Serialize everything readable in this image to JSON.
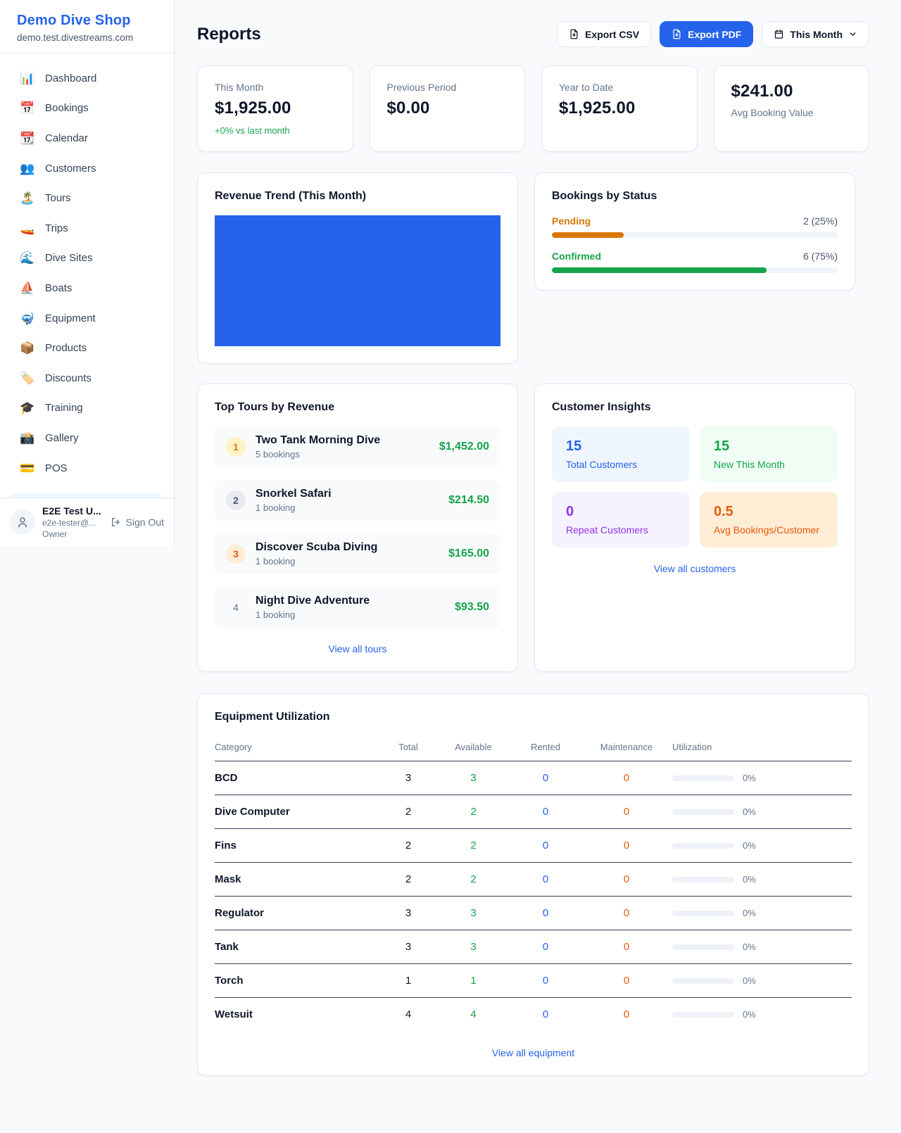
{
  "colors": {
    "accent": "#2563eb",
    "green": "#16a34a",
    "orange": "#d97706",
    "deep-orange": "#ea580c",
    "purple": "#9333ea",
    "bg": "#f8fafc",
    "border": "#e2e8f0",
    "row-border": "#334155",
    "chart-fill": "#2563eb"
  },
  "sidebar": {
    "brand": {
      "name": "Demo Dive Shop",
      "domain": "demo.test.divestreams.com"
    },
    "nav": [
      {
        "icon": "📊",
        "label": "Dashboard"
      },
      {
        "icon": "📅",
        "label": "Bookings"
      },
      {
        "icon": "📆",
        "label": "Calendar"
      },
      {
        "icon": "👥",
        "label": "Customers"
      },
      {
        "icon": "🏝️",
        "label": "Tours"
      },
      {
        "icon": "🚤",
        "label": "Trips"
      },
      {
        "icon": "🌊",
        "label": "Dive Sites"
      },
      {
        "icon": "⛵",
        "label": "Boats"
      },
      {
        "icon": "🤿",
        "label": "Equipment"
      },
      {
        "icon": "📦",
        "label": "Products"
      },
      {
        "icon": "🏷️",
        "label": "Discounts"
      },
      {
        "icon": "🎓",
        "label": "Training"
      },
      {
        "icon": "📸",
        "label": "Gallery"
      },
      {
        "icon": "💳",
        "label": "POS"
      }
    ],
    "user": {
      "name": "E2E Test U...",
      "email": "e2e-tester@...",
      "role": "Owner",
      "sign_out": "Sign Out"
    }
  },
  "header": {
    "title": "Reports",
    "export_csv": "Export CSV",
    "export_pdf": "Export PDF",
    "period": "This Month"
  },
  "stats": [
    {
      "label": "This Month",
      "value": "$1,925.00",
      "delta": "+0% vs last month"
    },
    {
      "label": "Previous Period",
      "value": "$0.00"
    },
    {
      "label": "Year to Date",
      "value": "$1,925.00"
    },
    {
      "label": "Avg Booking Value",
      "value": "$241.00"
    }
  ],
  "revenue_trend": {
    "title": "Revenue Trend (This Month)"
  },
  "bookings_by_status": {
    "title": "Bookings by Status",
    "rows": [
      {
        "label": "Pending",
        "count_text": "2 (25%)",
        "percent": 25
      },
      {
        "label": "Confirmed",
        "count_text": "6 (75%)",
        "percent": 75
      }
    ]
  },
  "top_tours": {
    "title": "Top Tours by Revenue",
    "items": [
      {
        "rank": "1",
        "name": "Two Tank Morning Dive",
        "bookings": "5 bookings",
        "amount": "$1,452.00"
      },
      {
        "rank": "2",
        "name": "Snorkel Safari",
        "bookings": "1 booking",
        "amount": "$214.50"
      },
      {
        "rank": "3",
        "name": "Discover Scuba Diving",
        "bookings": "1 booking",
        "amount": "$165.00"
      },
      {
        "rank": "4",
        "name": "Night Dive Adventure",
        "bookings": "1 booking",
        "amount": "$93.50"
      }
    ],
    "view_all": "View all tours"
  },
  "customer_insights": {
    "title": "Customer Insights",
    "boxes": [
      {
        "value": "15",
        "label": "Total Customers"
      },
      {
        "value": "15",
        "label": "New This Month"
      },
      {
        "value": "0",
        "label": "Repeat Customers"
      },
      {
        "value": "0.5",
        "label": "Avg Bookings/Customer"
      }
    ],
    "view_all": "View all customers"
  },
  "equipment": {
    "title": "Equipment Utilization",
    "columns": [
      "Category",
      "Total",
      "Available",
      "Rented",
      "Maintenance",
      "Utilization"
    ],
    "rows": [
      {
        "category": "BCD",
        "total": "3",
        "available": "3",
        "rented": "0",
        "maintenance": "0",
        "utilization_pct": "0%",
        "utilization": 0
      },
      {
        "category": "Dive Computer",
        "total": "2",
        "available": "2",
        "rented": "0",
        "maintenance": "0",
        "utilization_pct": "0%",
        "utilization": 0
      },
      {
        "category": "Fins",
        "total": "2",
        "available": "2",
        "rented": "0",
        "maintenance": "0",
        "utilization_pct": "0%",
        "utilization": 0
      },
      {
        "category": "Mask",
        "total": "2",
        "available": "2",
        "rented": "0",
        "maintenance": "0",
        "utilization_pct": "0%",
        "utilization": 0
      },
      {
        "category": "Regulator",
        "total": "3",
        "available": "3",
        "rented": "0",
        "maintenance": "0",
        "utilization_pct": "0%",
        "utilization": 0
      },
      {
        "category": "Tank",
        "total": "3",
        "available": "3",
        "rented": "0",
        "maintenance": "0",
        "utilization_pct": "0%",
        "utilization": 0
      },
      {
        "category": "Torch",
        "total": "1",
        "available": "1",
        "rented": "0",
        "maintenance": "0",
        "utilization_pct": "0%",
        "utilization": 0
      },
      {
        "category": "Wetsuit",
        "total": "4",
        "available": "4",
        "rented": "0",
        "maintenance": "0",
        "utilization_pct": "0%",
        "utilization": 0
      }
    ],
    "view_all": "View all equipment"
  }
}
